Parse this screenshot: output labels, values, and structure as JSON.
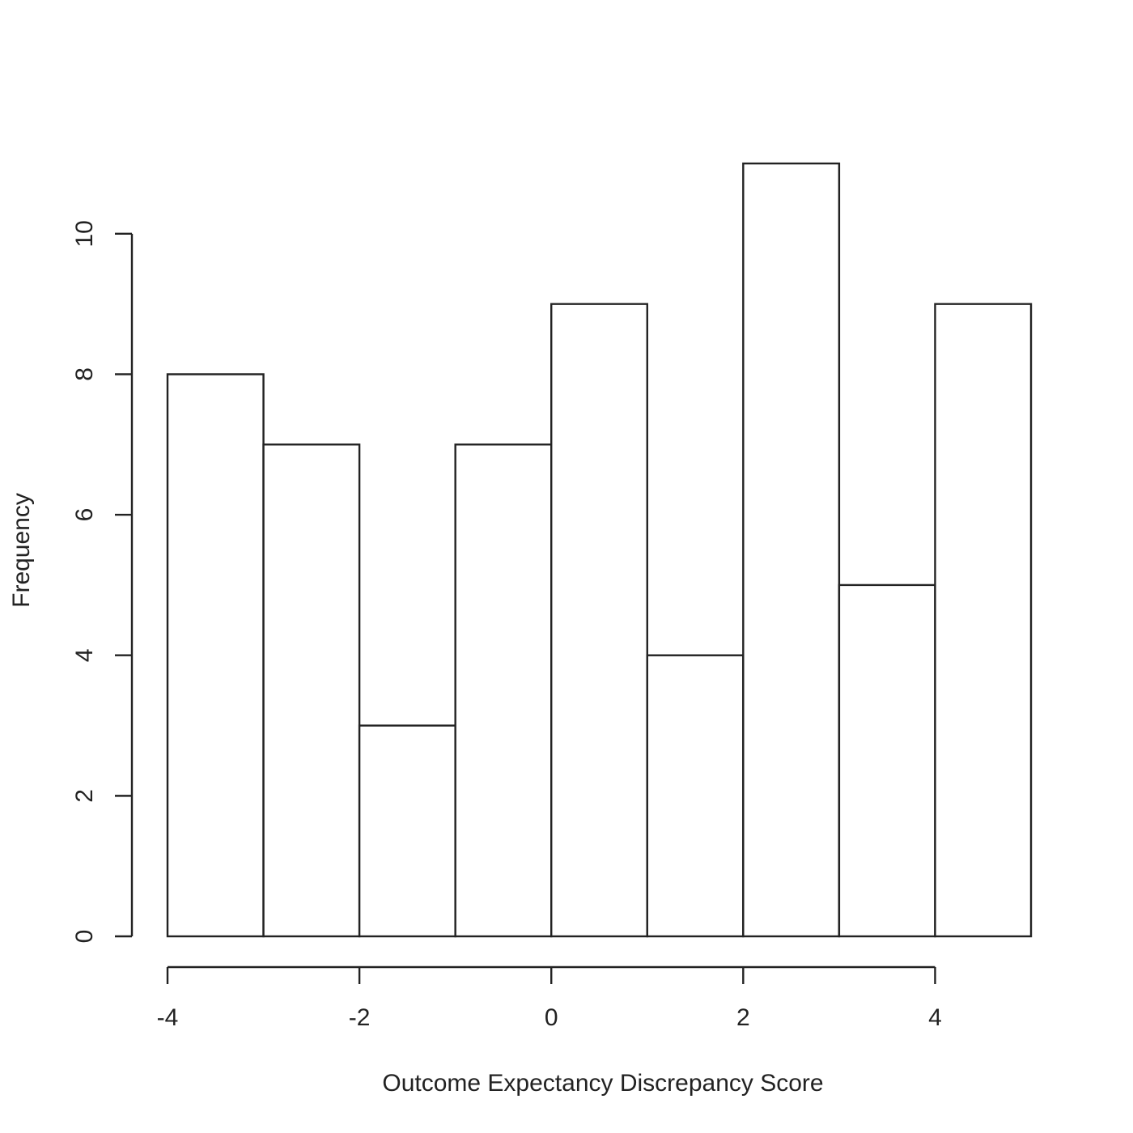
{
  "chart_data": {
    "type": "bar",
    "subtype": "histogram",
    "title": "",
    "xlabel": "Outcome Expectancy Discrepancy Score",
    "ylabel": "Frequency",
    "bins": [
      {
        "from": -4,
        "to": -3,
        "count": 8
      },
      {
        "from": -3,
        "to": -2,
        "count": 7
      },
      {
        "from": -2,
        "to": -1,
        "count": 3
      },
      {
        "from": -1,
        "to": 0,
        "count": 7
      },
      {
        "from": 0,
        "to": 1,
        "count": 9
      },
      {
        "from": 1,
        "to": 2,
        "count": 4
      },
      {
        "from": 2,
        "to": 3,
        "count": 11
      },
      {
        "from": 3,
        "to": 4,
        "count": 5
      },
      {
        "from": 4,
        "to": 5,
        "count": 9
      }
    ],
    "xticks": [
      -4,
      -2,
      0,
      2,
      4
    ],
    "yticks": [
      0,
      2,
      4,
      6,
      8,
      10
    ],
    "xlim": [
      -4,
      5
    ],
    "ylim": [
      0,
      11
    ],
    "grid": false,
    "legend": "none",
    "colors": {
      "bar_fill": "#ffffff",
      "stroke": "#222222"
    }
  }
}
